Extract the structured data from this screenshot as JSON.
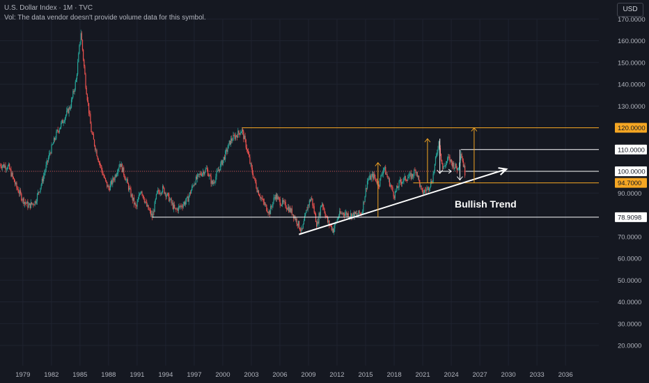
{
  "header": {
    "title": "U.S. Dollar Index · 1M · TVC",
    "volume_note": "Vol: The data vendor doesn't provide volume data for this symbol."
  },
  "currency_button": "USD",
  "colors": {
    "background": "#151821",
    "grid": "#1f2330",
    "up": "#26a69a",
    "down": "#ef5350",
    "gold": "#f5a623",
    "white": "#ffffff",
    "axis_text": "#b2b5be",
    "dotted_price": "#c94b4b"
  },
  "chart_data": {
    "type": "candlestick",
    "symbol": "U.S. Dollar Index",
    "interval": "1M",
    "x_ticks": [
      "1979",
      "1982",
      "1985",
      "1988",
      "1991",
      "1994",
      "1997",
      "2000",
      "2003",
      "2006",
      "2009",
      "2012",
      "2015",
      "2018",
      "2021",
      "2024",
      "2027",
      "2030",
      "2033",
      "2036"
    ],
    "y_ticks": [
      "20.0000",
      "30.0000",
      "40.0000",
      "50.0000",
      "60.0000",
      "70.0000",
      "78.9098",
      "90.0000",
      "100.0000",
      "110.0000",
      "120.0000",
      "130.0000",
      "140.0000",
      "150.0000",
      "160.0000",
      "170.0000"
    ],
    "ylim": [
      15,
      175
    ],
    "xlim": [
      1976.6,
      2039.5
    ],
    "price_path": [
      [
        1976.6,
        103
      ],
      [
        1977.5,
        102
      ],
      [
        1978.3,
        93
      ],
      [
        1979,
        87
      ],
      [
        1979.6,
        84
      ],
      [
        1980.3,
        86
      ],
      [
        1981,
        95
      ],
      [
        1981.8,
        108
      ],
      [
        1982.6,
        118
      ],
      [
        1983.3,
        124
      ],
      [
        1984,
        130
      ],
      [
        1984.6,
        142
      ],
      [
        1985.1,
        164
      ],
      [
        1985.6,
        140
      ],
      [
        1986.2,
        118
      ],
      [
        1986.9,
        106
      ],
      [
        1987.6,
        96
      ],
      [
        1988,
        92
      ],
      [
        1988.6,
        97
      ],
      [
        1989.2,
        104
      ],
      [
        1989.7,
        98
      ],
      [
        1990.3,
        90
      ],
      [
        1990.9,
        83
      ],
      [
        1991.4,
        92
      ],
      [
        1992,
        84
      ],
      [
        1992.6,
        79
      ],
      [
        1993.1,
        90
      ],
      [
        1993.7,
        92
      ],
      [
        1994.3,
        88
      ],
      [
        1995,
        82
      ],
      [
        1995.6,
        84
      ],
      [
        1996.3,
        87
      ],
      [
        1997,
        95
      ],
      [
        1997.7,
        99
      ],
      [
        1998.3,
        101
      ],
      [
        1998.9,
        94
      ],
      [
        1999.5,
        100
      ],
      [
        2000.2,
        107
      ],
      [
        2000.8,
        114
      ],
      [
        2001.5,
        117
      ],
      [
        2002,
        119
      ],
      [
        2002.5,
        111
      ],
      [
        2003,
        101
      ],
      [
        2003.6,
        92
      ],
      [
        2004.2,
        86
      ],
      [
        2004.9,
        81
      ],
      [
        2005.5,
        89
      ],
      [
        2006,
        86
      ],
      [
        2006.7,
        84
      ],
      [
        2007.3,
        81
      ],
      [
        2007.9,
        76
      ],
      [
        2008.3,
        72
      ],
      [
        2008.9,
        84
      ],
      [
        2009.3,
        88
      ],
      [
        2009.9,
        75
      ],
      [
        2010.4,
        86
      ],
      [
        2011,
        77
      ],
      [
        2011.6,
        73
      ],
      [
        2012.2,
        80
      ],
      [
        2012.7,
        81
      ],
      [
        2013.3,
        80
      ],
      [
        2014,
        80
      ],
      [
        2014.6,
        81
      ],
      [
        2015.2,
        96
      ],
      [
        2015.8,
        98
      ],
      [
        2016.4,
        94
      ],
      [
        2016.9,
        102
      ],
      [
        2017.4,
        96
      ],
      [
        2018,
        89
      ],
      [
        2018.6,
        95
      ],
      [
        2019.3,
        97
      ],
      [
        2019.9,
        98
      ],
      [
        2020.3,
        101
      ],
      [
        2020.9,
        90
      ],
      [
        2021.5,
        92
      ],
      [
        2022,
        96
      ],
      [
        2022.7,
        114
      ],
      [
        2023.1,
        101
      ],
      [
        2023.7,
        106
      ],
      [
        2024.2,
        103
      ],
      [
        2024.7,
        101
      ],
      [
        2025,
        109
      ],
      [
        2025.5,
        98
      ]
    ],
    "annotations": {
      "text": "Bullish Trend",
      "price_labels": [
        {
          "label": "120.0000",
          "value": 120,
          "style": "gold"
        },
        {
          "label": "110.0000",
          "value": 110,
          "style": "white"
        },
        {
          "label": "100.0000",
          "value": 100,
          "style": "white"
        },
        {
          "label": "94.7000",
          "value": 94.7,
          "style": "gold"
        },
        {
          "label": "78.9098",
          "value": 78.9098,
          "style": "white"
        }
      ],
      "hlines": [
        {
          "x1": 2002.0,
          "x2": 2039.5,
          "value": 120,
          "style": "gold"
        },
        {
          "x1": 2025.0,
          "x2": 2039.5,
          "value": 110,
          "style": "white"
        },
        {
          "x1": 2025.5,
          "x2": 2039.5,
          "value": 100,
          "style": "white"
        },
        {
          "x1": 2020.0,
          "x2": 2039.5,
          "value": 94.7,
          "style": "gold"
        },
        {
          "x1": 1992.6,
          "x2": 2039.5,
          "value": 78.9098,
          "style": "white"
        }
      ],
      "trendline": {
        "x1": 2008.0,
        "y1": 71,
        "x2": 2029.8,
        "y2": 101
      },
      "gold_arrows": [
        {
          "x": 2016.3,
          "from": 78.9,
          "to": 104
        },
        {
          "x": 2021.5,
          "from": 94.7,
          "to": 115
        },
        {
          "x": 2026.4,
          "from": 94.7,
          "to": 120
        }
      ],
      "white_arrows": [
        {
          "x": 2022.8,
          "from": 115,
          "to": 99
        },
        {
          "x": 2024.9,
          "from": 110,
          "to": 96
        }
      ],
      "small_arrow": {
        "x1": 2022.8,
        "x2": 2024.0,
        "value": 100
      }
    }
  }
}
